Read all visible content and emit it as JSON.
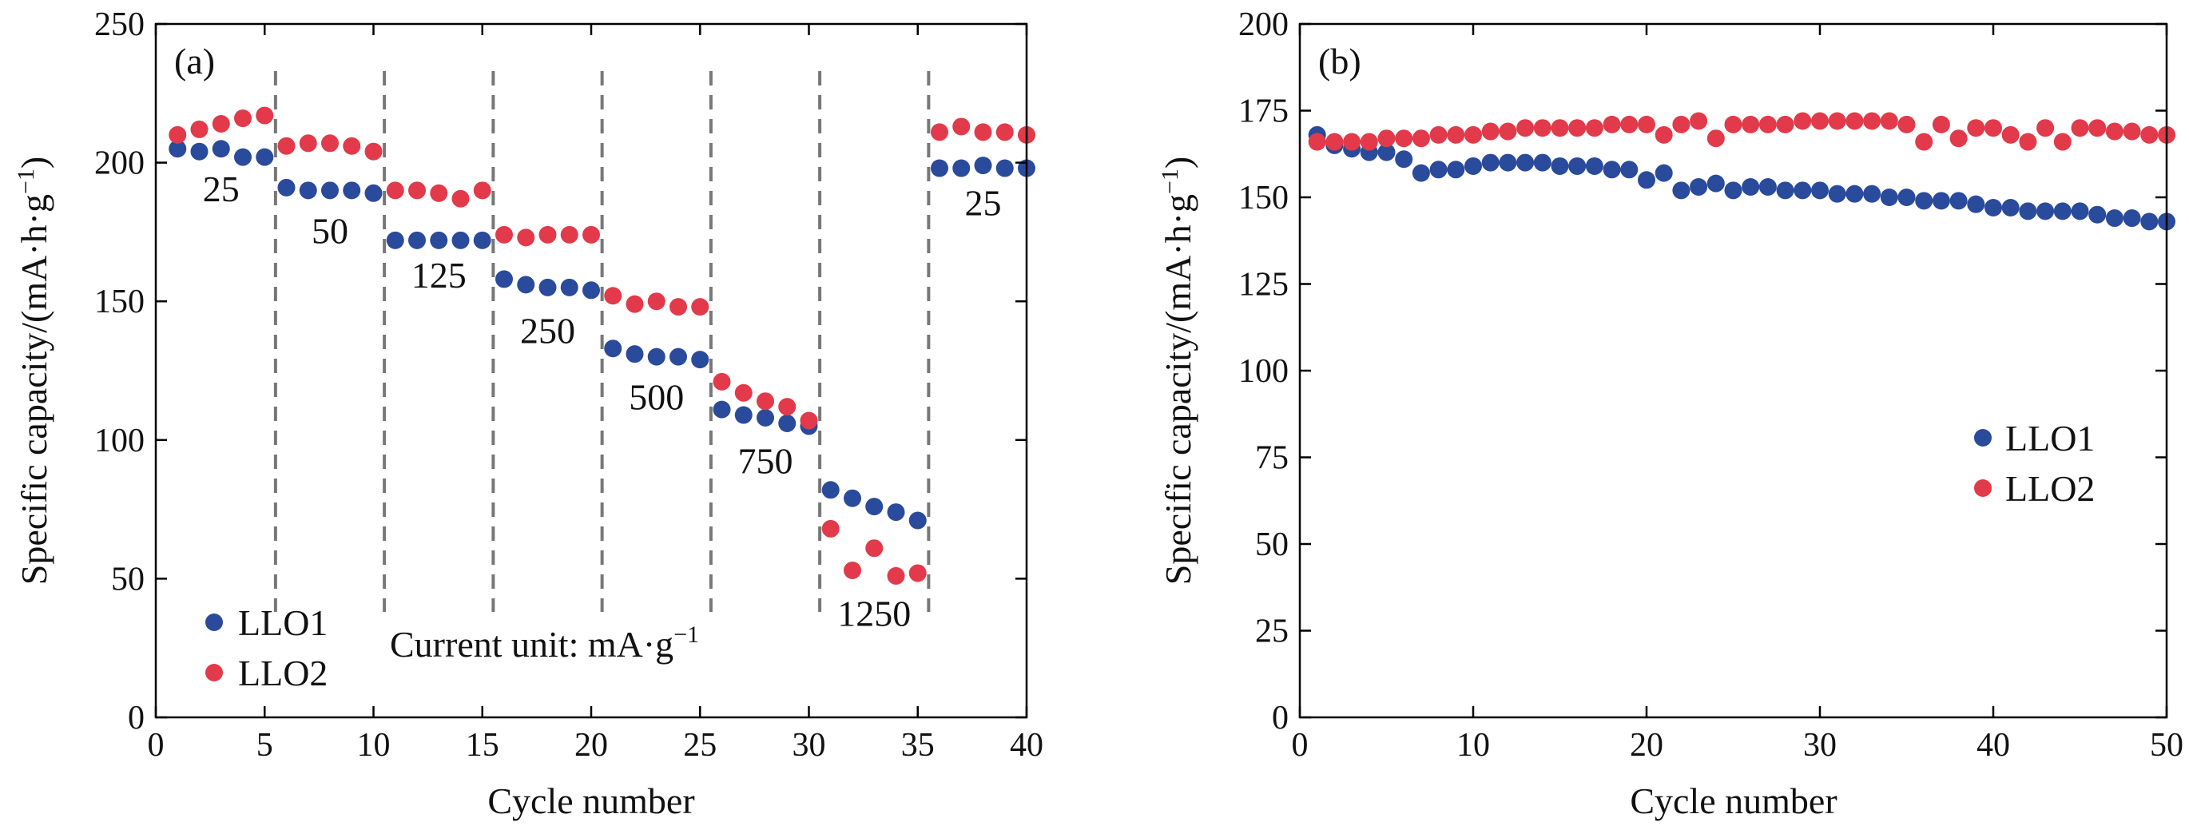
{
  "colors": {
    "LLO1": "#2a4a9c",
    "LLO2": "#e23a4a"
  },
  "chart_data": [
    {
      "type": "scatter",
      "panel_label": "(a)",
      "xlabel": "Cycle number",
      "ylabel": "Specific capacity/(mA·h·g⁻¹)",
      "xlim": [
        0,
        40
      ],
      "ylim": [
        0,
        250
      ],
      "xticks": [
        "0",
        "5",
        "10",
        "15",
        "20",
        "25",
        "30",
        "35",
        "40"
      ],
      "yticks": [
        "0",
        "50",
        "100",
        "150",
        "200",
        "250"
      ],
      "grid": false,
      "legend": "bottom-left",
      "note": "Current unit: mA·g⁻¹",
      "segment_boundaries": [
        5.5,
        10.5,
        15.5,
        20.5,
        25.5,
        30.5,
        35.5
      ],
      "current_labels": [
        {
          "text": "25",
          "x": 3,
          "y": 186
        },
        {
          "text": "50",
          "x": 8,
          "y": 171
        },
        {
          "text": "125",
          "x": 13,
          "y": 155
        },
        {
          "text": "250",
          "x": 18,
          "y": 135
        },
        {
          "text": "500",
          "x": 23,
          "y": 111
        },
        {
          "text": "750",
          "x": 28,
          "y": 88
        },
        {
          "text": "1250",
          "x": 33,
          "y": 33
        },
        {
          "text": "25",
          "x": 38,
          "y": 181
        }
      ],
      "series": [
        {
          "name": "LLO1",
          "x": [
            1,
            2,
            3,
            4,
            5,
            6,
            7,
            8,
            9,
            10,
            11,
            12,
            13,
            14,
            15,
            16,
            17,
            18,
            19,
            20,
            21,
            22,
            23,
            24,
            25,
            26,
            27,
            28,
            29,
            30,
            31,
            32,
            33,
            34,
            35,
            36,
            37,
            38,
            39,
            40
          ],
          "y": [
            205,
            204,
            205,
            202,
            202,
            191,
            190,
            190,
            190,
            189,
            172,
            172,
            172,
            172,
            172,
            158,
            156,
            155,
            155,
            154,
            133,
            131,
            130,
            130,
            129,
            111,
            109,
            108,
            106,
            105,
            82,
            79,
            76,
            74,
            71,
            198,
            198,
            199,
            198,
            198
          ]
        },
        {
          "name": "LLO2",
          "x": [
            1,
            2,
            3,
            4,
            5,
            6,
            7,
            8,
            9,
            10,
            11,
            12,
            13,
            14,
            15,
            16,
            17,
            18,
            19,
            20,
            21,
            22,
            23,
            24,
            25,
            26,
            27,
            28,
            29,
            30,
            31,
            32,
            33,
            34,
            35,
            36,
            37,
            38,
            39,
            40
          ],
          "y": [
            210,
            212,
            214,
            216,
            217,
            206,
            207,
            207,
            206,
            204,
            190,
            190,
            189,
            187,
            190,
            174,
            173,
            174,
            174,
            174,
            152,
            149,
            150,
            148,
            148,
            121,
            117,
            114,
            112,
            107,
            68,
            53,
            61,
            51,
            52,
            211,
            213,
            211,
            211,
            210
          ]
        }
      ]
    },
    {
      "type": "scatter",
      "panel_label": "(b)",
      "xlabel": "Cycle number",
      "ylabel": "Specific capacity/(mA·h·g⁻¹)",
      "xlim": [
        0,
        50
      ],
      "ylim": [
        0,
        200
      ],
      "xticks": [
        "0",
        "10",
        "20",
        "30",
        "40",
        "50"
      ],
      "yticks": [
        "0",
        "25",
        "50",
        "75",
        "100",
        "125",
        "150",
        "175",
        "200"
      ],
      "grid": false,
      "legend": "right",
      "series": [
        {
          "name": "LLO1",
          "x": [
            1,
            2,
            3,
            4,
            5,
            6,
            7,
            8,
            9,
            10,
            11,
            12,
            13,
            14,
            15,
            16,
            17,
            18,
            19,
            20,
            21,
            22,
            23,
            24,
            25,
            26,
            27,
            28,
            29,
            30,
            31,
            32,
            33,
            34,
            35,
            36,
            37,
            38,
            39,
            40,
            41,
            42,
            43,
            44,
            45,
            46,
            47,
            48,
            49,
            50
          ],
          "y": [
            168,
            165,
            164,
            163,
            163,
            161,
            157,
            158,
            158,
            159,
            160,
            160,
            160,
            160,
            159,
            159,
            159,
            158,
            158,
            155,
            157,
            152,
            153,
            154,
            152,
            153,
            153,
            152,
            152,
            152,
            151,
            151,
            151,
            150,
            150,
            149,
            149,
            149,
            148,
            147,
            147,
            146,
            146,
            146,
            146,
            145,
            144,
            144,
            143,
            143
          ]
        },
        {
          "name": "LLO2",
          "x": [
            1,
            2,
            3,
            4,
            5,
            6,
            7,
            8,
            9,
            10,
            11,
            12,
            13,
            14,
            15,
            16,
            17,
            18,
            19,
            20,
            21,
            22,
            23,
            24,
            25,
            26,
            27,
            28,
            29,
            30,
            31,
            32,
            33,
            34,
            35,
            36,
            37,
            38,
            39,
            40,
            41,
            42,
            43,
            44,
            45,
            46,
            47,
            48,
            49,
            50
          ],
          "y": [
            166,
            166,
            166,
            166,
            167,
            167,
            167,
            168,
            168,
            168,
            169,
            169,
            170,
            170,
            170,
            170,
            170,
            171,
            171,
            171,
            168,
            171,
            172,
            167,
            171,
            171,
            171,
            171,
            172,
            172,
            172,
            172,
            172,
            172,
            171,
            166,
            171,
            167,
            170,
            170,
            168,
            166,
            170,
            166,
            170,
            170,
            169,
            169,
            168,
            168
          ]
        }
      ]
    }
  ]
}
